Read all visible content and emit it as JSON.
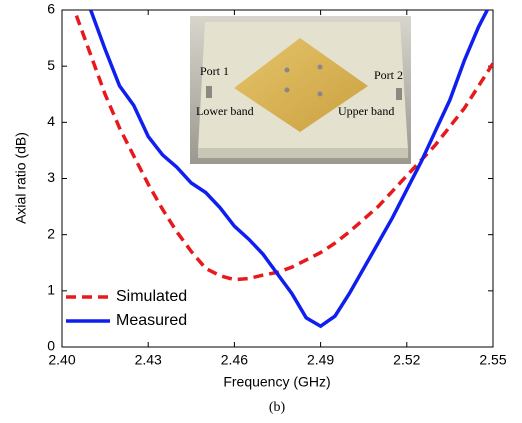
{
  "chart_data": {
    "type": "line",
    "xlabel": "Frequency (GHz)",
    "ylabel": "Axial ratio (dB)",
    "caption": "(b)",
    "xlim": [
      2.4,
      2.55
    ],
    "ylim": [
      0,
      6
    ],
    "xticks": [
      {
        "value": 2.4,
        "label": "2.40"
      },
      2.43,
      2.46,
      2.49,
      2.52,
      2.55
    ],
    "yticks": [
      0,
      1,
      2,
      3,
      4,
      5,
      6
    ],
    "legend": "lower left",
    "inset": {
      "labels": [
        "Port 1",
        "Port 2",
        "Lower band",
        "Upper band"
      ]
    },
    "series": [
      {
        "name": "Simulated",
        "color": "#e8191c",
        "dash": true,
        "x": [
          2.405,
          2.41,
          2.415,
          2.42,
          2.425,
          2.43,
          2.435,
          2.44,
          2.445,
          2.45,
          2.455,
          2.46,
          2.465,
          2.47,
          2.475,
          2.48,
          2.485,
          2.49,
          2.495,
          2.5,
          2.51,
          2.52,
          2.53,
          2.54,
          2.55
        ],
        "values": [
          5.9,
          5.2,
          4.5,
          3.9,
          3.4,
          2.9,
          2.45,
          2.05,
          1.7,
          1.4,
          1.27,
          1.2,
          1.22,
          1.28,
          1.33,
          1.42,
          1.55,
          1.68,
          1.85,
          2.05,
          2.5,
          3.05,
          3.6,
          4.25,
          5.05
        ]
      },
      {
        "name": "Measured",
        "color": "#0f1ff0",
        "dash": false,
        "x": [
          2.41,
          2.415,
          2.42,
          2.425,
          2.43,
          2.435,
          2.44,
          2.445,
          2.45,
          2.455,
          2.46,
          2.465,
          2.47,
          2.475,
          2.48,
          2.485,
          2.49,
          2.495,
          2.5,
          2.505,
          2.51,
          2.515,
          2.52,
          2.525,
          2.53,
          2.535,
          2.54,
          2.545,
          2.548
        ],
        "values": [
          6.0,
          5.3,
          4.65,
          4.3,
          3.75,
          3.42,
          3.2,
          2.92,
          2.75,
          2.48,
          2.15,
          1.92,
          1.65,
          1.3,
          0.95,
          0.52,
          0.37,
          0.55,
          0.95,
          1.4,
          1.85,
          2.3,
          2.8,
          3.3,
          3.85,
          4.4,
          5.1,
          5.7,
          6.0
        ]
      }
    ]
  }
}
